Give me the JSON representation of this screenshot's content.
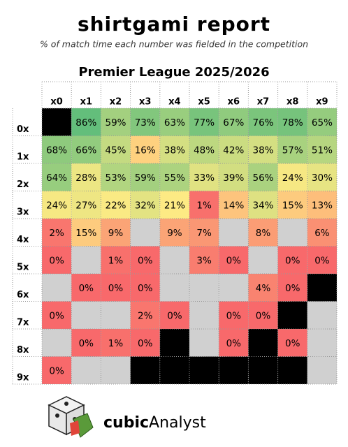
{
  "header": {
    "title": "shirtgami report",
    "subtitle": "% of match time each number was fielded in the competition"
  },
  "table": {
    "title": "Premier League 2025/2026",
    "columns": [
      "x0",
      "x1",
      "x2",
      "x3",
      "x4",
      "x5",
      "x6",
      "x7",
      "x8",
      "x9"
    ],
    "row_labels": [
      "0x",
      "1x",
      "2x",
      "3x",
      "4x",
      "5x",
      "6x",
      "7x",
      "8x",
      "9x"
    ],
    "rows": [
      [
        {
          "color": "#000000"
        },
        "86%",
        "59%",
        "73%",
        "63%",
        "77%",
        "67%",
        "76%",
        "78%",
        "65%"
      ],
      [
        "68%",
        "66%",
        "45%",
        "16%",
        "38%",
        "48%",
        "42%",
        "38%",
        "57%",
        "51%"
      ],
      [
        "64%",
        "28%",
        "53%",
        "59%",
        "55%",
        "33%",
        "39%",
        "56%",
        "24%",
        "30%"
      ],
      [
        "24%",
        "27%",
        "22%",
        "32%",
        "21%",
        "1%",
        "14%",
        "34%",
        "15%",
        "13%"
      ],
      [
        "2%",
        "15%",
        "9%",
        null,
        "9%",
        "7%",
        null,
        "8%",
        null,
        "6%"
      ],
      [
        "0%",
        null,
        "1%",
        "0%",
        null,
        "3%",
        "0%",
        null,
        "0%",
        "0%"
      ],
      [
        null,
        "0%",
        "0%",
        "0%",
        null,
        null,
        null,
        "4%",
        "0%",
        {
          "color": "#000000"
        }
      ],
      [
        "0%",
        null,
        null,
        "2%",
        "0%",
        null,
        "0%",
        "0%",
        {
          "color": "#000000"
        },
        null
      ],
      [
        null,
        "0%",
        "1%",
        "0%",
        {
          "color": "#000000"
        },
        null,
        "0%",
        {
          "color": "#000000"
        },
        "0%",
        null
      ],
      [
        "0%",
        null,
        null,
        {
          "color": "#000000"
        },
        {
          "color": "#000000"
        },
        {
          "color": "#000000"
        },
        {
          "color": "#000000"
        },
        {
          "color": "#000000"
        },
        {
          "color": "#000000"
        },
        null
      ]
    ]
  },
  "footer": {
    "brand_bold": "cubic",
    "brand": "Analyst"
  }
}
